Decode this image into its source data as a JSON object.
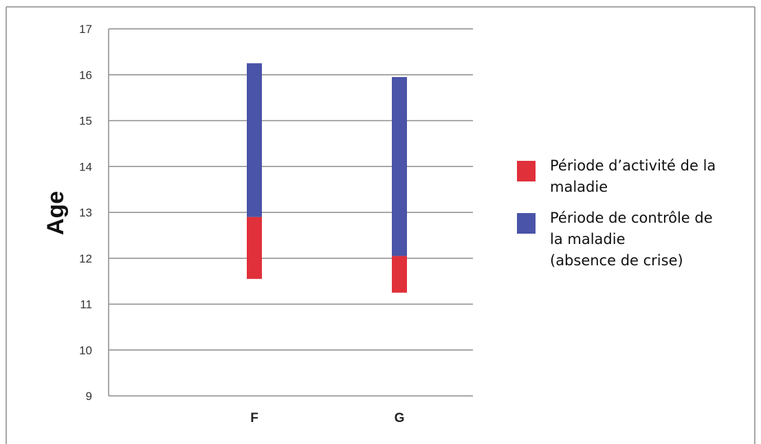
{
  "chart_data": {
    "type": "bar",
    "subtype": "floating-stacked",
    "ylabel": "Age",
    "xlabel": "",
    "ylim": [
      9,
      17
    ],
    "yticks": [
      9,
      10,
      11,
      12,
      13,
      14,
      15,
      16,
      17
    ],
    "grid": true,
    "legend_position": "right",
    "categories": [
      "F",
      "G"
    ],
    "series": [
      {
        "name": "Période d’activité de la\nmaladie",
        "color": "#e0303a",
        "ranges": [
          [
            11.55,
            12.9
          ],
          [
            11.25,
            12.05
          ]
        ]
      },
      {
        "name": "Période de contrôle de\nla maladie\n(absence de crise)",
        "color": "#4a54a8",
        "ranges": [
          [
            12.9,
            16.25
          ],
          [
            12.05,
            15.95
          ]
        ]
      }
    ]
  }
}
